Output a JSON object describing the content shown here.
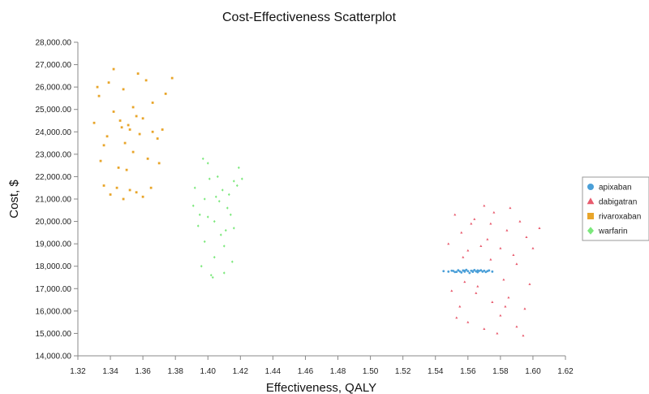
{
  "chart_data": {
    "type": "scatter",
    "title": "Cost-Effectiveness Scatterplot",
    "xlabel": "Effectiveness, QALY",
    "ylabel": "Cost, $",
    "xlim": [
      1.32,
      1.62
    ],
    "ylim": [
      14000,
      28000
    ],
    "x_ticks": [
      "1.32",
      "1.34",
      "1.36",
      "1.38",
      "1.40",
      "1.42",
      "1.44",
      "1.46",
      "1.48",
      "1.50",
      "1.52",
      "1.54",
      "1.56",
      "1.58",
      "1.60",
      "1.62"
    ],
    "y_ticks": [
      "14,000.00",
      "15,000.00",
      "16,000.00",
      "17,000.00",
      "18,000.00",
      "19,000.00",
      "20,000.00",
      "21,000.00",
      "22,000.00",
      "23,000.00",
      "24,000.00",
      "25,000.00",
      "26,000.00",
      "27,000.00",
      "28,000.00"
    ],
    "grid": false,
    "legend_position": "right",
    "series": [
      {
        "name": "apixaban",
        "color": "#4a9fd8",
        "marker": "circle",
        "points": [
          [
            1.545,
            17780
          ],
          [
            1.548,
            17760
          ],
          [
            1.55,
            17800
          ],
          [
            1.552,
            17740
          ],
          [
            1.554,
            17820
          ],
          [
            1.555,
            17770
          ],
          [
            1.556,
            17720
          ],
          [
            1.557,
            17810
          ],
          [
            1.558,
            17760
          ],
          [
            1.559,
            17840
          ],
          [
            1.56,
            17780
          ],
          [
            1.561,
            17700
          ],
          [
            1.562,
            17800
          ],
          [
            1.563,
            17750
          ],
          [
            1.564,
            17830
          ],
          [
            1.565,
            17770
          ],
          [
            1.566,
            17730
          ],
          [
            1.567,
            17790
          ],
          [
            1.568,
            17820
          ],
          [
            1.569,
            17760
          ],
          [
            1.57,
            17800
          ],
          [
            1.571,
            17740
          ],
          [
            1.572,
            17780
          ],
          [
            1.573,
            17810
          ],
          [
            1.575,
            17760
          ],
          [
            1.551,
            17790
          ],
          [
            1.553,
            17750
          ],
          [
            1.558,
            17800
          ],
          [
            1.563,
            17780
          ],
          [
            1.566,
            17810
          ]
        ]
      },
      {
        "name": "dabigatran",
        "color": "#e85b6e",
        "marker": "triangle",
        "points": [
          [
            1.548,
            19000
          ],
          [
            1.552,
            20300
          ],
          [
            1.556,
            19500
          ],
          [
            1.56,
            18700
          ],
          [
            1.564,
            20100
          ],
          [
            1.568,
            18900
          ],
          [
            1.572,
            19200
          ],
          [
            1.576,
            20400
          ],
          [
            1.58,
            18800
          ],
          [
            1.584,
            19600
          ],
          [
            1.588,
            18500
          ],
          [
            1.592,
            20000
          ],
          [
            1.596,
            19300
          ],
          [
            1.6,
            18800
          ],
          [
            1.604,
            19700
          ],
          [
            1.555,
            16200
          ],
          [
            1.56,
            15500
          ],
          [
            1.565,
            16800
          ],
          [
            1.57,
            15200
          ],
          [
            1.575,
            16400
          ],
          [
            1.58,
            15800
          ],
          [
            1.585,
            16600
          ],
          [
            1.59,
            15300
          ],
          [
            1.595,
            16100
          ],
          [
            1.55,
            16900
          ],
          [
            1.558,
            17300
          ],
          [
            1.566,
            17100
          ],
          [
            1.574,
            18300
          ],
          [
            1.582,
            17400
          ],
          [
            1.59,
            18100
          ],
          [
            1.598,
            17200
          ],
          [
            1.562,
            19900
          ],
          [
            1.578,
            15000
          ],
          [
            1.586,
            20600
          ],
          [
            1.594,
            14900
          ],
          [
            1.57,
            20700
          ],
          [
            1.557,
            18400
          ],
          [
            1.574,
            19900
          ],
          [
            1.583,
            16200
          ],
          [
            1.553,
            15700
          ]
        ]
      },
      {
        "name": "rivaroxaban",
        "color": "#e8a52a",
        "marker": "square",
        "points": [
          [
            1.33,
            24400
          ],
          [
            1.333,
            25600
          ],
          [
            1.336,
            23400
          ],
          [
            1.339,
            26200
          ],
          [
            1.342,
            24900
          ],
          [
            1.345,
            22400
          ],
          [
            1.348,
            25900
          ],
          [
            1.351,
            24300
          ],
          [
            1.354,
            23100
          ],
          [
            1.357,
            26600
          ],
          [
            1.36,
            24600
          ],
          [
            1.363,
            22800
          ],
          [
            1.366,
            25300
          ],
          [
            1.369,
            23700
          ],
          [
            1.372,
            24100
          ],
          [
            1.336,
            21600
          ],
          [
            1.34,
            21200
          ],
          [
            1.344,
            21500
          ],
          [
            1.348,
            21000
          ],
          [
            1.352,
            21400
          ],
          [
            1.356,
            21300
          ],
          [
            1.36,
            21100
          ],
          [
            1.365,
            21500
          ],
          [
            1.334,
            22700
          ],
          [
            1.338,
            23800
          ],
          [
            1.342,
            26800
          ],
          [
            1.346,
            24500
          ],
          [
            1.35,
            22300
          ],
          [
            1.354,
            25100
          ],
          [
            1.358,
            23900
          ],
          [
            1.362,
            26300
          ],
          [
            1.366,
            24000
          ],
          [
            1.37,
            22600
          ],
          [
            1.374,
            25700
          ],
          [
            1.378,
            26400
          ],
          [
            1.332,
            26000
          ],
          [
            1.347,
            24200
          ],
          [
            1.352,
            24100
          ],
          [
            1.349,
            23500
          ],
          [
            1.356,
            24700
          ]
        ]
      },
      {
        "name": "warfarin",
        "color": "#7be87b",
        "marker": "diamond",
        "points": [
          [
            1.392,
            21500
          ],
          [
            1.395,
            20300
          ],
          [
            1.398,
            19100
          ],
          [
            1.401,
            21900
          ],
          [
            1.404,
            18400
          ],
          [
            1.407,
            20900
          ],
          [
            1.41,
            17700
          ],
          [
            1.413,
            21200
          ],
          [
            1.416,
            19700
          ],
          [
            1.419,
            22400
          ],
          [
            1.396,
            18000
          ],
          [
            1.4,
            22600
          ],
          [
            1.404,
            20000
          ],
          [
            1.408,
            19400
          ],
          [
            1.412,
            20600
          ],
          [
            1.416,
            21800
          ],
          [
            1.394,
            19800
          ],
          [
            1.398,
            21000
          ],
          [
            1.402,
            17600
          ],
          [
            1.406,
            22000
          ],
          [
            1.41,
            18900
          ],
          [
            1.414,
            20300
          ],
          [
            1.418,
            21600
          ],
          [
            1.391,
            20700
          ],
          [
            1.397,
            22800
          ],
          [
            1.403,
            17500
          ],
          [
            1.409,
            21400
          ],
          [
            1.415,
            18200
          ],
          [
            1.421,
            21900
          ],
          [
            1.4,
            20200
          ],
          [
            1.405,
            21100
          ],
          [
            1.411,
            19600
          ]
        ]
      }
    ]
  }
}
